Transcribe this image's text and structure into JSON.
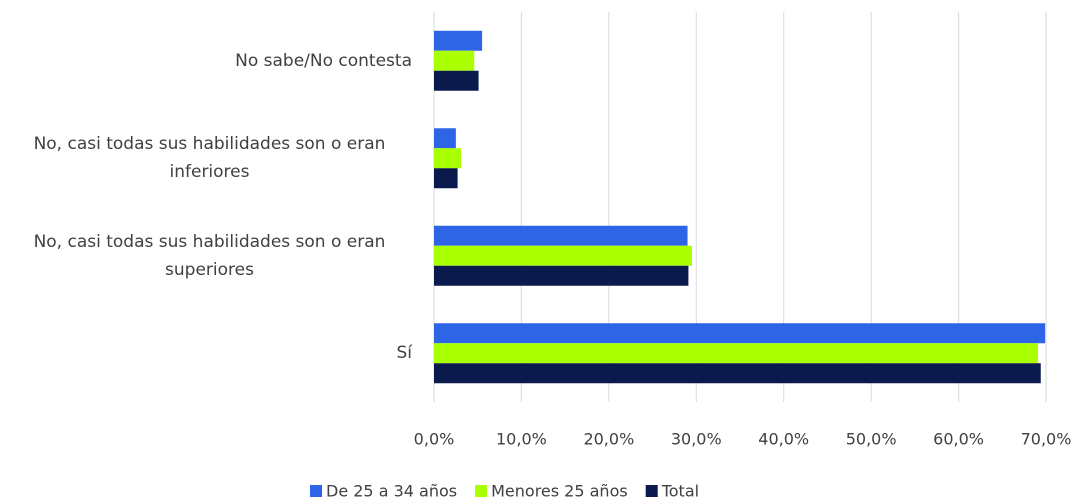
{
  "chart_data": {
    "type": "hbar",
    "categories": [
      "No sabe/No contesta",
      "No, casi todas sus habilidades son o eran inferiores",
      "No, casi todas sus habilidades son o eran superiores",
      "Sí"
    ],
    "series": [
      {
        "name": "De 25 a 34 años",
        "color": "#2e64e6",
        "values": [
          5.5,
          2.5,
          29.0,
          69.9
        ]
      },
      {
        "name": "Menores 25 años",
        "color": "#aaff00",
        "values": [
          4.6,
          3.1,
          29.5,
          69.1
        ]
      },
      {
        "name": "Total",
        "color": "#0b1a4d",
        "values": [
          5.1,
          2.7,
          29.1,
          69.4
        ]
      }
    ],
    "xlim": [
      0,
      70
    ],
    "xticks": [
      {
        "value": 0,
        "label": "0,0%"
      },
      {
        "value": 10,
        "label": "10,0%"
      },
      {
        "value": 20,
        "label": "20,0%"
      },
      {
        "value": 30,
        "label": "30,0%"
      },
      {
        "value": 40,
        "label": "40,0%"
      },
      {
        "value": 50,
        "label": "50,0%"
      },
      {
        "value": 60,
        "label": "60,0%"
      },
      {
        "value": 70,
        "label": "70,0%"
      }
    ],
    "grid": true,
    "legend": "bottom"
  }
}
